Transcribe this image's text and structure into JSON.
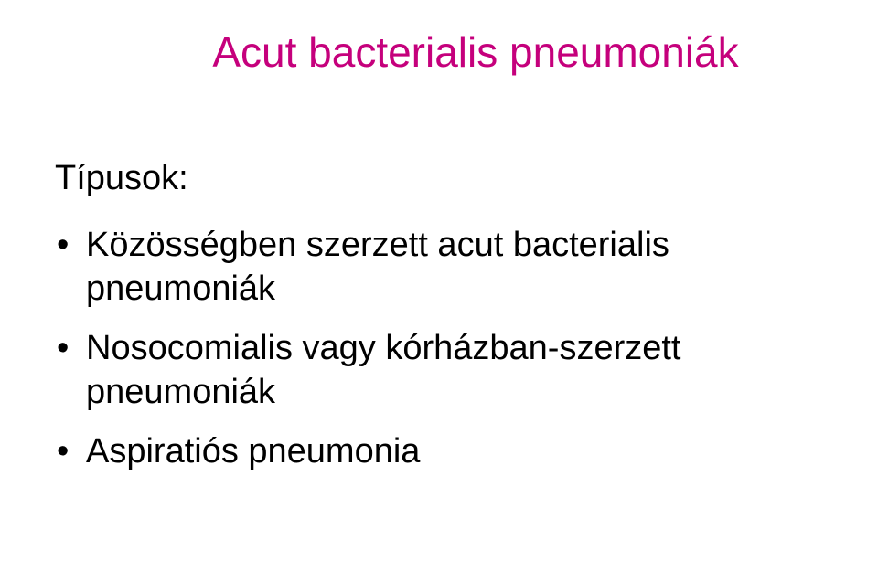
{
  "title": {
    "text": "Acut bacterialis pneumoniák",
    "color": "#c5007c",
    "fontsize": 46
  },
  "section_label": {
    "text": "Típusok:",
    "color": "#000000",
    "fontsize": 38
  },
  "bullets": {
    "color": "#000000",
    "fontsize": 38,
    "items": [
      "Közösségben szerzett acut bacterialis pneumoniák",
      "Nosocomialis vagy kórházban-szerzett pneumoniák",
      "Aspiratiós pneumonia"
    ]
  },
  "background_color": "#ffffff"
}
